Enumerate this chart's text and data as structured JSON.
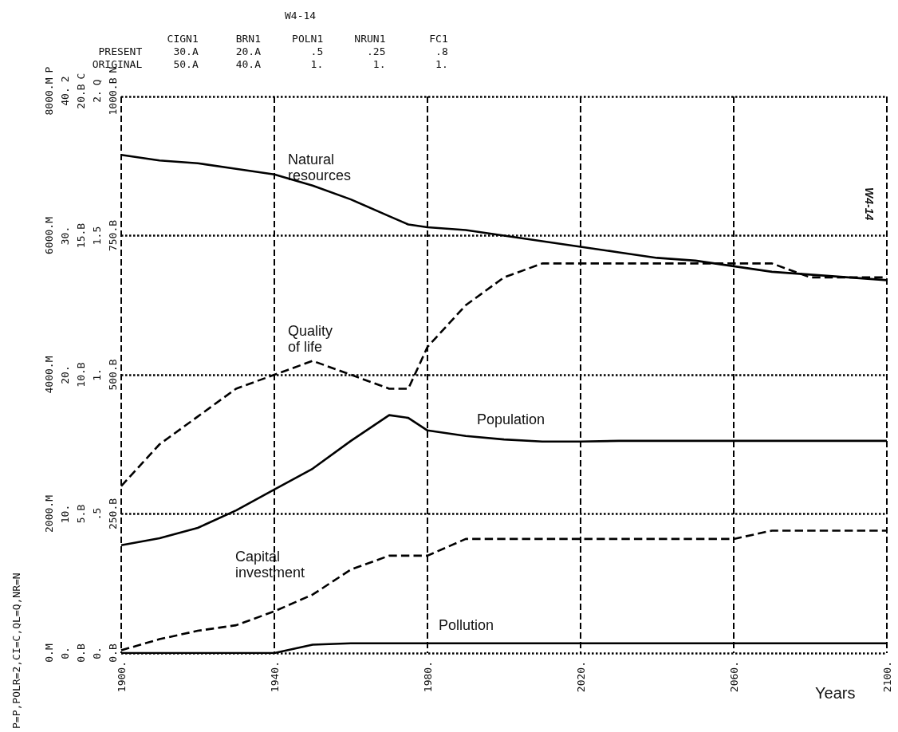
{
  "chart_data": [
    {
      "type": "line",
      "title": "W4-14",
      "xlabel": "Years",
      "ylabel": "P",
      "y2label": "2",
      "y3label": "C",
      "x": [
        1900,
        1910,
        1920,
        1930,
        1940,
        1950,
        1960,
        1970,
        1975,
        1980,
        1990,
        2000,
        2010,
        2020,
        2030,
        2040,
        2050,
        2060,
        2070,
        2080,
        2090,
        2100
      ],
      "xlim": [
        1900,
        2100
      ],
      "xticks": [
        {
          "value": 1900,
          "label": "1900."
        },
        {
          "value": 1940,
          "label": "1940."
        },
        {
          "value": 1980,
          "label": "1980."
        },
        {
          "value": 2020,
          "label": "2020."
        },
        {
          "value": 2060,
          "label": "2060."
        },
        {
          "value": 2100,
          "label": "2100."
        }
      ],
      "ylim": [
        0,
        8000
      ],
      "yticks": [
        {
          "value": 0,
          "label": "0.M"
        },
        {
          "value": 2000,
          "label": "2000.M"
        },
        {
          "value": 4000,
          "label": "4000.M"
        },
        {
          "value": 6000,
          "label": "6000.M"
        },
        {
          "value": 8000,
          "label": "8000.M"
        }
      ],
      "y2lim": [
        0,
        40
      ],
      "y2ticks": [
        {
          "value": 0,
          "label": "0."
        },
        {
          "value": 10,
          "label": "10."
        },
        {
          "value": 20,
          "label": "20."
        },
        {
          "value": 30,
          "label": "30."
        },
        {
          "value": 40,
          "label": "40."
        }
      ],
      "y3lim": [
        0,
        20
      ],
      "y3ticks": [
        {
          "value": 0,
          "label": "0.B"
        },
        {
          "value": 5,
          "label": "5.B"
        },
        {
          "value": 10,
          "label": "10.B"
        },
        {
          "value": 15,
          "label": "15.B"
        },
        {
          "value": 20,
          "label": "20.B"
        }
      ],
      "grid": true,
      "marker": "none",
      "series": [
        {
          "color": "#000000",
          "line_style": "solid",
          "values": [
            1550,
            1650,
            1800,
            2050,
            2350,
            2650,
            3050,
            3420,
            3380,
            3200,
            3120,
            3070,
            3040,
            3040,
            3050,
            3050,
            3050,
            3050,
            3050,
            3050,
            3050,
            3050
          ]
        },
        {
          "color": "#000000",
          "line_style": "solid",
          "axis": "y2",
          "values": [
            0,
            0,
            0,
            0,
            0,
            0.6,
            0.7,
            0.7,
            0.7,
            0.7,
            0.7,
            0.7,
            0.7,
            0.7,
            0.7,
            0.7,
            0.7,
            0.7,
            0.7,
            0.7,
            0.7,
            0.7
          ]
        },
        {
          "color": "#000000",
          "line_style": "dashed",
          "axis": "y3",
          "values": [
            0.1,
            0.5,
            0.8,
            1.0,
            1.5,
            2.1,
            3.0,
            3.5,
            3.5,
            3.5,
            4.1,
            4.1,
            4.1,
            4.1,
            4.1,
            4.1,
            4.1,
            4.1,
            4.4,
            4.4,
            4.4,
            4.4
          ]
        }
      ],
      "annotations": [
        "              CIGN1      BRN1     POLN1     NRUN1       FC1",
        "   PRESENT     30.A      20.A        .5       .25        .8",
        "  ORIGINAL     50.A      40.A        1.        1.        1.",
        "P=P,POLR=2,CI=C,QL=Q,NR=N",
        "W4-14",
        "Natural resources",
        "Quality of life",
        "Population",
        "Capital investment",
        "Pollution"
      ]
    },
    {
      "type": "line",
      "ylabel": "Q",
      "y2label": "N",
      "tick_labels": "y",
      "marker": "none",
      "x": [
        1900,
        1910,
        1920,
        1930,
        1940,
        1950,
        1960,
        1970,
        1975,
        1980,
        1990,
        2000,
        2010,
        2020,
        2030,
        2040,
        2050,
        2060,
        2070,
        2080,
        2090,
        2100
      ],
      "xlim": [
        1900,
        2100
      ],
      "ylim": [
        0,
        2
      ],
      "yticks": [
        {
          "value": 0,
          "label": "0."
        },
        {
          "value": 0.5,
          "label": ".5"
        },
        {
          "value": 1,
          "label": "1."
        },
        {
          "value": 1.5,
          "label": "1.5"
        },
        {
          "value": 2,
          "label": "2."
        }
      ],
      "y2lim": [
        0,
        1000
      ],
      "y2ticks": [
        {
          "value": 0,
          "label": "0.B"
        },
        {
          "value": 250,
          "label": "250.B"
        },
        {
          "value": 500,
          "label": "500.B"
        },
        {
          "value": 750,
          "label": "750.B"
        },
        {
          "value": 1000,
          "label": "1000.B"
        }
      ],
      "series": [
        {
          "color": "#000000",
          "line_style": "dashed",
          "values": [
            0.6,
            0.75,
            0.85,
            0.95,
            1.0,
            1.05,
            1.0,
            0.95,
            0.95,
            1.1,
            1.25,
            1.35,
            1.4,
            1.4,
            1.4,
            1.4,
            1.4,
            1.4,
            1.4,
            1.35,
            1.35,
            1.35
          ]
        },
        {
          "color": "#000000",
          "line_style": "solid",
          "axis": "y2",
          "values": [
            895,
            885,
            880,
            870,
            860,
            840,
            815,
            785,
            770,
            765,
            760,
            750,
            740,
            730,
            720,
            710,
            705,
            695,
            685,
            680,
            675,
            670
          ]
        }
      ]
    }
  ]
}
